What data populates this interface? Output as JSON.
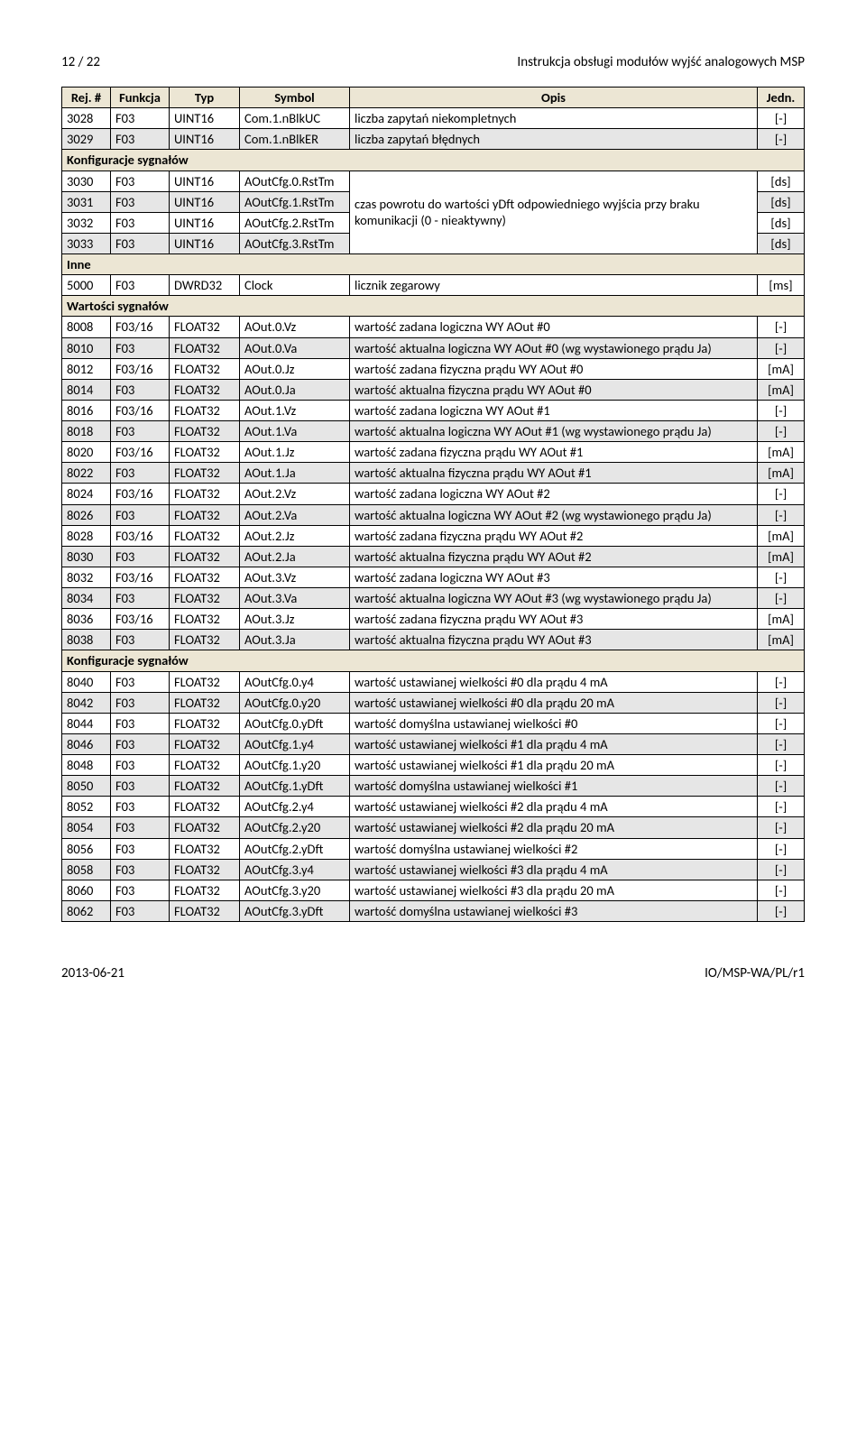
{
  "header": {
    "left": "12 / 22",
    "right": "Instrukcja obsługi modułów wyjść analogowych MSP"
  },
  "footer": {
    "left": "2013-06-21",
    "right": "IO/MSP-WA/PL/r1"
  },
  "thead": {
    "rej": "Rej. #",
    "fun": "Funkcja",
    "typ": "Typ",
    "sym": "Symbol",
    "opis": "Opis",
    "jedn": "Jedn."
  },
  "rows": [
    {
      "t": "d",
      "r": "3028",
      "f": "F03",
      "y": "UINT16",
      "s": "Com.1.nBlkUC",
      "o": "liczba zapytań niekompletnych",
      "j": "[-]",
      "g": 0
    },
    {
      "t": "d",
      "r": "3029",
      "f": "F03",
      "y": "UINT16",
      "s": "Com.1.nBlkER",
      "o": "liczba zapytań błędnych",
      "j": "[-]",
      "g": 1
    },
    {
      "t": "s",
      "label": "Konfiguracje sygnałów"
    },
    {
      "t": "m0",
      "r": "3030",
      "f": "F03",
      "y": "UINT16",
      "s": "AOutCfg.0.RstTm",
      "j": "[ds]",
      "g": 0,
      "merged_opis": "czas powrotu do wartości yDft odpowiedniego wyjścia przy braku komunikacji (0 - nieaktywny)"
    },
    {
      "t": "m",
      "r": "3031",
      "f": "F03",
      "y": "UINT16",
      "s": "AOutCfg.1.RstTm",
      "j": "[ds]",
      "g": 1
    },
    {
      "t": "m",
      "r": "3032",
      "f": "F03",
      "y": "UINT16",
      "s": "AOutCfg.2.RstTm",
      "j": "[ds]",
      "g": 0
    },
    {
      "t": "m",
      "r": "3033",
      "f": "F03",
      "y": "UINT16",
      "s": "AOutCfg.3.RstTm",
      "j": "[ds]",
      "g": 1
    },
    {
      "t": "s",
      "label": "Inne"
    },
    {
      "t": "d",
      "r": "5000",
      "f": "F03",
      "y": "DWRD32",
      "s": "Clock",
      "o": "licznik zegarowy",
      "j": "[ms]",
      "g": 0
    },
    {
      "t": "s",
      "label": "Wartości sygnałów"
    },
    {
      "t": "d",
      "r": "8008",
      "f": "F03/16",
      "y": "FLOAT32",
      "s": "AOut.0.Vz",
      "o": "wartość zadana logiczna WY AOut #0",
      "j": "[-]",
      "g": 0
    },
    {
      "t": "d",
      "r": "8010",
      "f": "F03",
      "y": "FLOAT32",
      "s": "AOut.0.Va",
      "o": "wartość aktualna logiczna  WY AOut #0 (wg wystawionego prądu Ja)",
      "j": "[-]",
      "g": 1
    },
    {
      "t": "d",
      "r": "8012",
      "f": "F03/16",
      "y": "FLOAT32",
      "s": "AOut.0.Jz",
      "o": "wartość zadana fizyczna prądu WY AOut #0",
      "j": "[mA]",
      "g": 0
    },
    {
      "t": "d",
      "r": "8014",
      "f": "F03",
      "y": "FLOAT32",
      "s": "AOut.0.Ja",
      "o": "wartość aktualna fizyczna prądu WY AOut #0",
      "j": "[mA]",
      "g": 1
    },
    {
      "t": "d",
      "r": "8016",
      "f": "F03/16",
      "y": "FLOAT32",
      "s": "AOut.1.Vz",
      "o": "wartość zadana logiczna WY AOut #1",
      "j": "[-]",
      "g": 0
    },
    {
      "t": "d",
      "r": "8018",
      "f": "F03",
      "y": "FLOAT32",
      "s": "AOut.1.Va",
      "o": "wartość aktualna logiczna  WY AOut #1 (wg wystawionego prądu Ja)",
      "j": "[-]",
      "g": 1
    },
    {
      "t": "d",
      "r": "8020",
      "f": "F03/16",
      "y": "FLOAT32",
      "s": "AOut.1.Jz",
      "o": "wartość zadana fizyczna prądu WY AOut #1",
      "j": "[mA]",
      "g": 0
    },
    {
      "t": "d",
      "r": "8022",
      "f": "F03",
      "y": "FLOAT32",
      "s": "AOut.1.Ja",
      "o": "wartość aktualna fizyczna prądu WY AOut #1",
      "j": "[mA]",
      "g": 1
    },
    {
      "t": "d",
      "r": "8024",
      "f": "F03/16",
      "y": "FLOAT32",
      "s": "AOut.2.Vz",
      "o": "wartość zadana logiczna WY AOut #2",
      "j": "[-]",
      "g": 0
    },
    {
      "t": "d",
      "r": "8026",
      "f": "F03",
      "y": "FLOAT32",
      "s": "AOut.2.Va",
      "o": "wartość aktualna logiczna  WY AOut #2 (wg wystawionego prądu Ja)",
      "j": "[-]",
      "g": 1
    },
    {
      "t": "d",
      "r": "8028",
      "f": "F03/16",
      "y": "FLOAT32",
      "s": "AOut.2.Jz",
      "o": "wartość zadana fizyczna prądu WY AOut #2",
      "j": "[mA]",
      "g": 0
    },
    {
      "t": "d",
      "r": "8030",
      "f": "F03",
      "y": "FLOAT32",
      "s": "AOut.2.Ja",
      "o": "wartość aktualna fizyczna prądu WY AOut #2",
      "j": "[mA]",
      "g": 1
    },
    {
      "t": "d",
      "r": "8032",
      "f": "F03/16",
      "y": "FLOAT32",
      "s": "AOut.3.Vz",
      "o": "wartość zadana logiczna WY AOut #3",
      "j": "[-]",
      "g": 0
    },
    {
      "t": "d",
      "r": "8034",
      "f": "F03",
      "y": "FLOAT32",
      "s": "AOut.3.Va",
      "o": "wartość aktualna logiczna  WY AOut #3 (wg wystawionego prądu Ja)",
      "j": "[-]",
      "g": 1
    },
    {
      "t": "d",
      "r": "8036",
      "f": "F03/16",
      "y": "FLOAT32",
      "s": "AOut.3.Jz",
      "o": "wartość zadana fizyczna prądu WY AOut #3",
      "j": "[mA]",
      "g": 0
    },
    {
      "t": "d",
      "r": "8038",
      "f": "F03",
      "y": "FLOAT32",
      "s": "AOut.3.Ja",
      "o": "wartość aktualna fizyczna prądu WY AOut #3",
      "j": "[mA]",
      "g": 1
    },
    {
      "t": "s",
      "label": "Konfiguracje sygnałów"
    },
    {
      "t": "d",
      "r": "8040",
      "f": "F03",
      "y": "FLOAT32",
      "s": "AOutCfg.0.y4",
      "o": "wartość ustawianej wielkości #0 dla prądu 4 mA",
      "j": "[-]",
      "g": 0
    },
    {
      "t": "d",
      "r": "8042",
      "f": "F03",
      "y": "FLOAT32",
      "s": "AOutCfg.0.y20",
      "o": "wartość ustawianej wielkości #0 dla prądu 20 mA",
      "j": "[-]",
      "g": 1
    },
    {
      "t": "d",
      "r": "8044",
      "f": "F03",
      "y": "FLOAT32",
      "s": "AOutCfg.0.yDft",
      "o": "wartość domyślna ustawianej wielkości #0",
      "j": "[-]",
      "g": 0
    },
    {
      "t": "d",
      "r": "8046",
      "f": "F03",
      "y": "FLOAT32",
      "s": "AOutCfg.1.y4",
      "o": "wartość ustawianej wielkości #1 dla prądu 4 mA",
      "j": "[-]",
      "g": 1
    },
    {
      "t": "d",
      "r": "8048",
      "f": "F03",
      "y": "FLOAT32",
      "s": "AOutCfg.1.y20",
      "o": "wartość ustawianej wielkości #1 dla prądu 20 mA",
      "j": "[-]",
      "g": 0
    },
    {
      "t": "d",
      "r": "8050",
      "f": "F03",
      "y": "FLOAT32",
      "s": "AOutCfg.1.yDft",
      "o": "wartość domyślna ustawianej wielkości #1",
      "j": "[-]",
      "g": 1
    },
    {
      "t": "d",
      "r": "8052",
      "f": "F03",
      "y": "FLOAT32",
      "s": "AOutCfg.2.y4",
      "o": "wartość ustawianej wielkości #2 dla prądu 4 mA",
      "j": "[-]",
      "g": 0
    },
    {
      "t": "d",
      "r": "8054",
      "f": "F03",
      "y": "FLOAT32",
      "s": "AOutCfg.2.y20",
      "o": "wartość ustawianej wielkości #2 dla prądu 20 mA",
      "j": "[-]",
      "g": 1
    },
    {
      "t": "d",
      "r": "8056",
      "f": "F03",
      "y": "FLOAT32",
      "s": "AOutCfg.2.yDft",
      "o": "wartość domyślna ustawianej wielkości #2",
      "j": "[-]",
      "g": 0
    },
    {
      "t": "d",
      "r": "8058",
      "f": "F03",
      "y": "FLOAT32",
      "s": "AOutCfg.3.y4",
      "o": "wartość ustawianej wielkości #3 dla prądu 4 mA",
      "j": "[-]",
      "g": 1
    },
    {
      "t": "d",
      "r": "8060",
      "f": "F03",
      "y": "FLOAT32",
      "s": "AOutCfg.3.y20",
      "o": "wartość ustawianej wielkości #3 dla prądu 20 mA",
      "j": "[-]",
      "g": 0
    },
    {
      "t": "d",
      "r": "8062",
      "f": "F03",
      "y": "FLOAT32",
      "s": "AOutCfg.3.yDft",
      "o": "wartość domyślna ustawianej wielkości #3",
      "j": "[-]",
      "g": 1
    }
  ]
}
